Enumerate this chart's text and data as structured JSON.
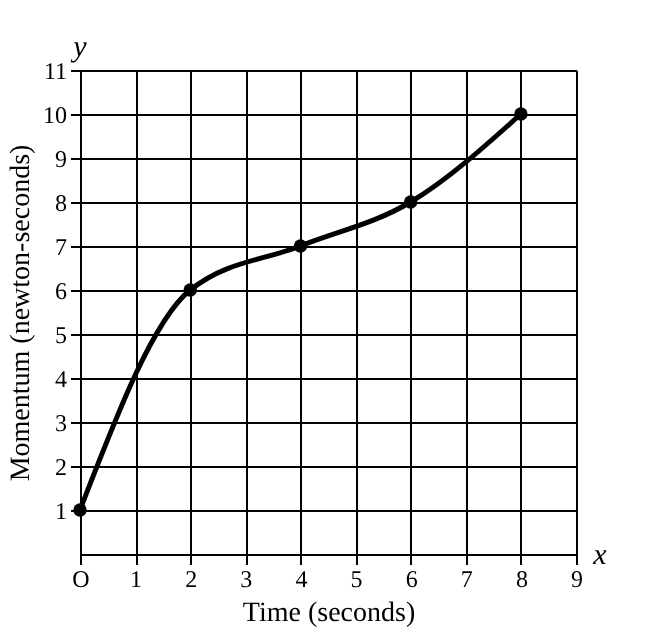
{
  "chart_data": {
    "type": "line",
    "xlabel": "Time (seconds)",
    "ylabel": "Momentum (newton-seconds)",
    "x": [
      0,
      2,
      4,
      6,
      8
    ],
    "values": [
      1,
      6,
      7,
      8,
      10
    ],
    "color": "#000000",
    "marker": "circle",
    "line_style": "solid",
    "grid": true,
    "xlim": [
      0,
      9
    ],
    "ylim": [
      0,
      11
    ],
    "xticks": [
      {
        "value": 0,
        "label": "O"
      },
      1,
      2,
      3,
      4,
      5,
      6,
      7,
      8,
      9
    ],
    "yticks": [
      1,
      2,
      3,
      4,
      5,
      6,
      7,
      8,
      9,
      10,
      11
    ],
    "annotations": [
      "x",
      "y"
    ]
  }
}
